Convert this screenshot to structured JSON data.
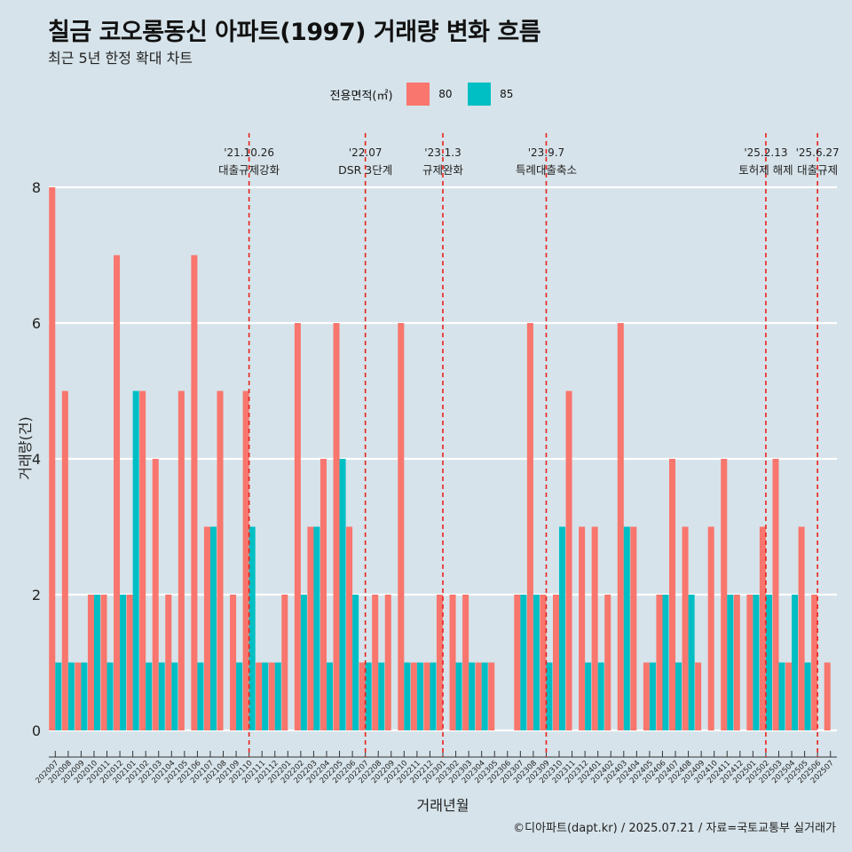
{
  "header": {
    "title": "칠금 코오롱동신 아파트(1997) 거래량 변화 흐름",
    "subtitle": "최근 5년 한정 확대 차트"
  },
  "legend": {
    "title": "전용면적(㎡)",
    "items": [
      {
        "label": "80",
        "color": "#F8766D"
      },
      {
        "label": "85",
        "color": "#00BFC4"
      }
    ]
  },
  "caption": "©디아파트(dapt.kr) / 2025.07.21 / 자료=국토교통부 실거래가",
  "chart_data": {
    "type": "bar",
    "title": "칠금 코오롱동신 아파트(1997) 거래량 변화 흐름",
    "xlabel": "거래년월",
    "ylabel": "거래량(건)",
    "ylim": [
      0,
      8
    ],
    "yticks": [
      0,
      2,
      4,
      6,
      8
    ],
    "categories": [
      "202007",
      "202008",
      "202009",
      "202010",
      "202011",
      "202012",
      "202101",
      "202102",
      "202103",
      "202104",
      "202105",
      "202106",
      "202107",
      "202108",
      "202109",
      "202110",
      "202111",
      "202112",
      "202201",
      "202202",
      "202203",
      "202204",
      "202205",
      "202206",
      "202207",
      "202208",
      "202209",
      "202210",
      "202211",
      "202212",
      "202301",
      "202302",
      "202303",
      "202304",
      "202305",
      "202306",
      "202307",
      "202308",
      "202309",
      "202310",
      "202311",
      "202312",
      "202401",
      "202402",
      "202403",
      "202404",
      "202405",
      "202406",
      "202407",
      "202408",
      "202409",
      "202410",
      "202411",
      "202412",
      "202501",
      "202502",
      "202503",
      "202504",
      "202505",
      "202506",
      "202507"
    ],
    "series": [
      {
        "name": "80",
        "color": "#F8766D",
        "values": [
          8,
          5,
          1,
          2,
          2,
          7,
          2,
          5,
          4,
          2,
          5,
          7,
          3,
          5,
          2,
          5,
          1,
          1,
          2,
          6,
          3,
          4,
          6,
          3,
          1,
          2,
          2,
          6,
          1,
          1,
          2,
          2,
          2,
          1,
          1,
          0,
          2,
          6,
          2,
          2,
          5,
          3,
          3,
          2,
          6,
          3,
          1,
          2,
          4,
          3,
          1,
          3,
          4,
          2,
          2,
          3,
          4,
          1,
          3,
          2,
          1
        ]
      },
      {
        "name": "85",
        "color": "#00BFC4",
        "values": [
          1,
          1,
          1,
          2,
          1,
          2,
          5,
          1,
          1,
          1,
          0,
          1,
          3,
          0,
          1,
          3,
          1,
          1,
          0,
          2,
          3,
          1,
          4,
          2,
          1,
          1,
          0,
          1,
          1,
          1,
          0,
          1,
          1,
          1,
          0,
          0,
          2,
          2,
          1,
          3,
          0,
          1,
          1,
          0,
          3,
          0,
          1,
          2,
          1,
          2,
          0,
          0,
          2,
          0,
          2,
          2,
          1,
          2,
          1,
          0,
          0
        ]
      }
    ],
    "events": [
      {
        "date": "'21.10.26",
        "label": "대출규제강화",
        "position": "202110"
      },
      {
        "date": "'22.07",
        "label": "DSR 3단계",
        "position": "202207"
      },
      {
        "date": "'23.1.3",
        "label": "규제완화",
        "position": "202301"
      },
      {
        "date": "'23.9.7",
        "label": "특례대출축소",
        "position": "202309"
      },
      {
        "date": "'25.2.13",
        "label": "토허제 해제",
        "position": "202502"
      },
      {
        "date": "'25.6.27",
        "label": "대출규제",
        "position": "202506"
      }
    ]
  }
}
